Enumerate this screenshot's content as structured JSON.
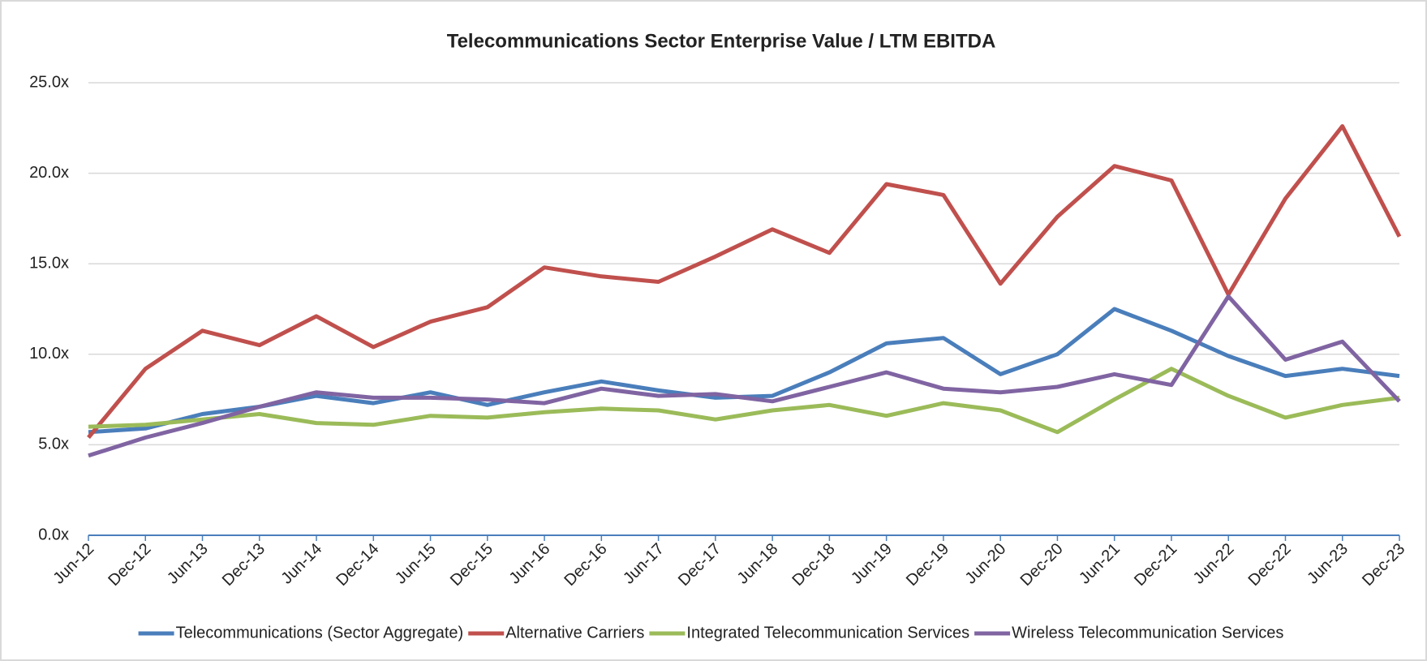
{
  "chart_data": {
    "type": "line",
    "title": "Telecommunications  Sector Enterprise Value  / LTM EBITDA",
    "categories": [
      "Jun-12",
      "Dec-12",
      "Jun-13",
      "Dec-13",
      "Jun-14",
      "Dec-14",
      "Jun-15",
      "Dec-15",
      "Jun-16",
      "Dec-16",
      "Jun-17",
      "Dec-17",
      "Jun-18",
      "Dec-18",
      "Jun-19",
      "Dec-19",
      "Jun-20",
      "Dec-20",
      "Jun-21",
      "Dec-21",
      "Jun-22",
      "Dec-22",
      "Jun-23",
      "Dec-23"
    ],
    "series": [
      {
        "name": "Telecommunications (Sector Aggregate)",
        "color": "#4a7ebb",
        "values": [
          5.7,
          5.9,
          6.7,
          7.1,
          7.7,
          7.3,
          7.9,
          7.2,
          7.9,
          8.5,
          8.0,
          7.6,
          7.7,
          9.0,
          10.6,
          10.9,
          8.9,
          10.0,
          12.5,
          11.3,
          9.9,
          8.8,
          9.2,
          8.8
        ]
      },
      {
        "name": "Alternative Carriers",
        "color": "#c0504d",
        "values": [
          5.4,
          9.2,
          11.3,
          10.5,
          12.1,
          10.4,
          11.8,
          12.6,
          14.8,
          14.3,
          14.0,
          15.4,
          16.9,
          15.6,
          19.4,
          18.8,
          13.9,
          17.6,
          20.4,
          19.6,
          13.3,
          18.6,
          22.6,
          16.5
        ]
      },
      {
        "name": "Integrated Telecommunication Services",
        "color": "#9bbb59",
        "values": [
          6.0,
          6.1,
          6.4,
          6.7,
          6.2,
          6.1,
          6.6,
          6.5,
          6.8,
          7.0,
          6.9,
          6.4,
          6.9,
          7.2,
          6.6,
          7.3,
          6.9,
          5.7,
          7.5,
          9.2,
          7.7,
          6.5,
          7.2,
          7.6
        ]
      },
      {
        "name": "Wireless Telecommunication Services",
        "color": "#8064a2",
        "values": [
          4.4,
          5.4,
          6.2,
          7.1,
          7.9,
          7.6,
          7.6,
          7.5,
          7.3,
          8.1,
          7.7,
          7.8,
          7.4,
          8.2,
          9.0,
          8.1,
          7.9,
          8.2,
          8.9,
          8.3,
          13.2,
          9.7,
          10.7,
          7.4
        ]
      }
    ],
    "ylim": [
      0,
      25
    ],
    "yticks": [
      {
        "value": 0,
        "label": "0.0x"
      },
      {
        "value": 5,
        "label": "5.0x"
      },
      {
        "value": 10,
        "label": "10.0x"
      },
      {
        "value": 15,
        "label": "15.0x"
      },
      {
        "value": 20,
        "label": "20.0x"
      },
      {
        "value": 25,
        "label": "25.0x"
      }
    ],
    "grid": true,
    "legend": "bottom"
  }
}
